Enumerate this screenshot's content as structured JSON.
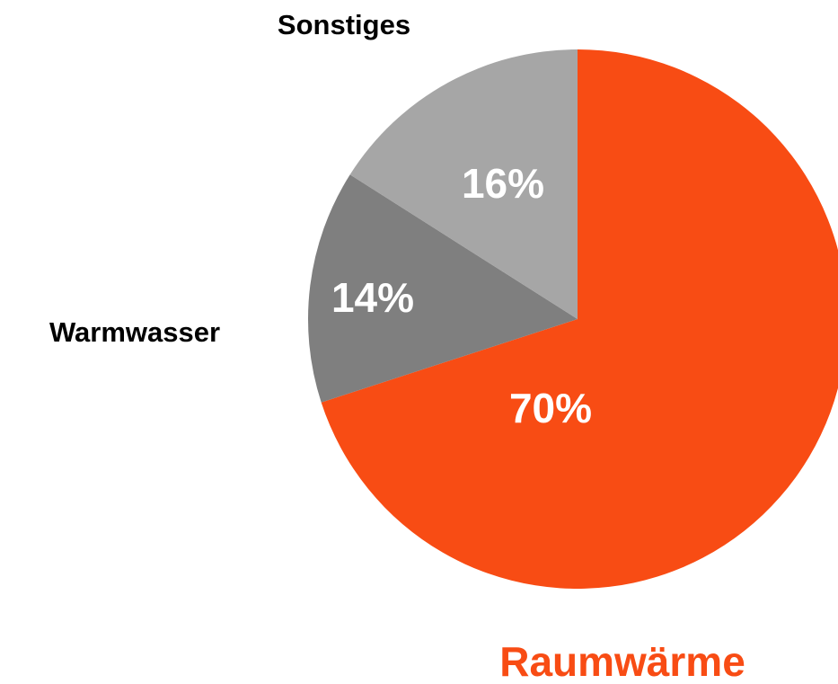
{
  "chart_data": {
    "type": "pie",
    "categories": [
      "Raumwärme",
      "Warmwasser",
      "Sonstiges"
    ],
    "values": [
      70,
      14,
      16
    ],
    "value_labels": [
      "70%",
      "14%",
      "16%"
    ],
    "colors": [
      "#f84c14",
      "#7f7f7f",
      "#a6a6a6"
    ]
  }
}
